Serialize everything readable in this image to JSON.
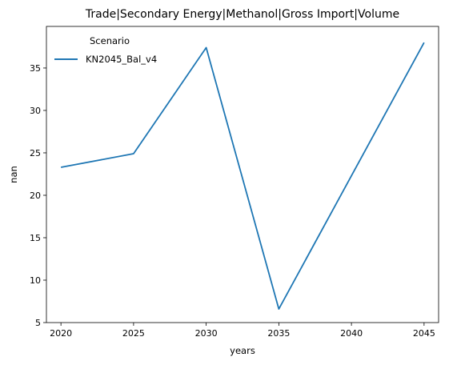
{
  "chart_data": {
    "type": "line",
    "title": "Trade|Secondary Energy|Methanol|Gross Import|Volume",
    "xlabel": "years",
    "ylabel": "nan",
    "x": [
      2020,
      2025,
      2030,
      2035,
      2040,
      2045
    ],
    "xticks": [
      "2020",
      "2025",
      "2030",
      "2035",
      "2040",
      "2045"
    ],
    "yticks": [
      "5",
      "10",
      "15",
      "20",
      "25",
      "30",
      "35"
    ],
    "xlim": [
      2019,
      2046
    ],
    "ylim": [
      5.0,
      39.9
    ],
    "grid": false,
    "legend": {
      "title": "Scenario",
      "placement": "top-left"
    },
    "series": [
      {
        "name": "KN2045_Bal_v4",
        "color": "#1f77b4",
        "values": [
          23.3,
          24.9,
          37.4,
          6.6,
          22.3,
          38.0
        ]
      }
    ]
  }
}
